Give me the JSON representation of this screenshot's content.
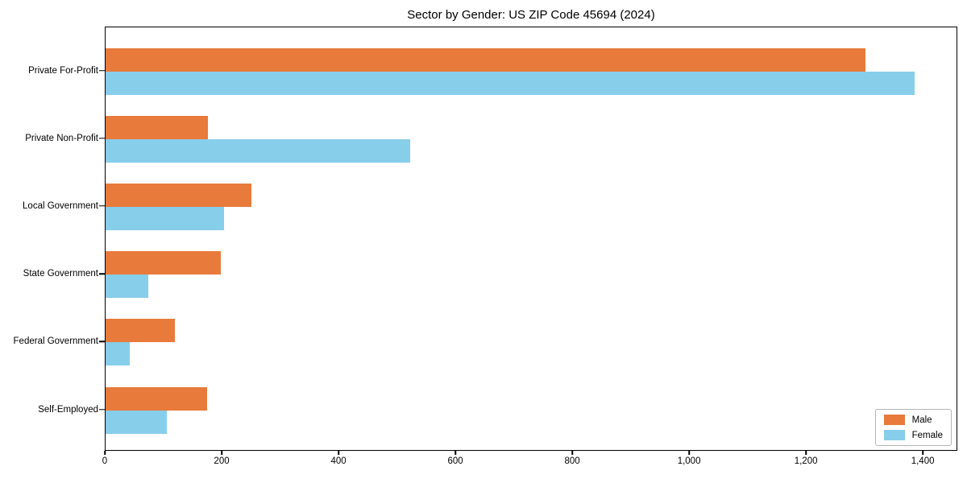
{
  "chart_data": {
    "type": "bar",
    "orientation": "horizontal",
    "title": "Sector by Gender: US ZIP Code 45694 (2024)",
    "xlabel": "",
    "ylabel": "",
    "categories": [
      "Private For-Profit",
      "Private Non-Profit",
      "Local Government",
      "State Government",
      "Federal Government",
      "Self-Employed"
    ],
    "series": [
      {
        "name": "Male",
        "color": "#E87A3C",
        "values": [
          1300,
          175,
          250,
          197,
          119,
          174
        ]
      },
      {
        "name": "Female",
        "color": "#87CEEB",
        "values": [
          1385,
          522,
          203,
          73,
          41,
          105
        ]
      }
    ],
    "xlim": [
      0,
      1455
    ],
    "xticks": [
      0,
      200,
      400,
      600,
      800,
      1000,
      1200,
      1400
    ],
    "xtick_labels": [
      "0",
      "200",
      "400",
      "600",
      "800",
      "1,000",
      "1,200",
      "1,400"
    ],
    "grid": false,
    "legend_position": "lower right",
    "axis_color": "#000000",
    "background_color": "#ffffff"
  }
}
